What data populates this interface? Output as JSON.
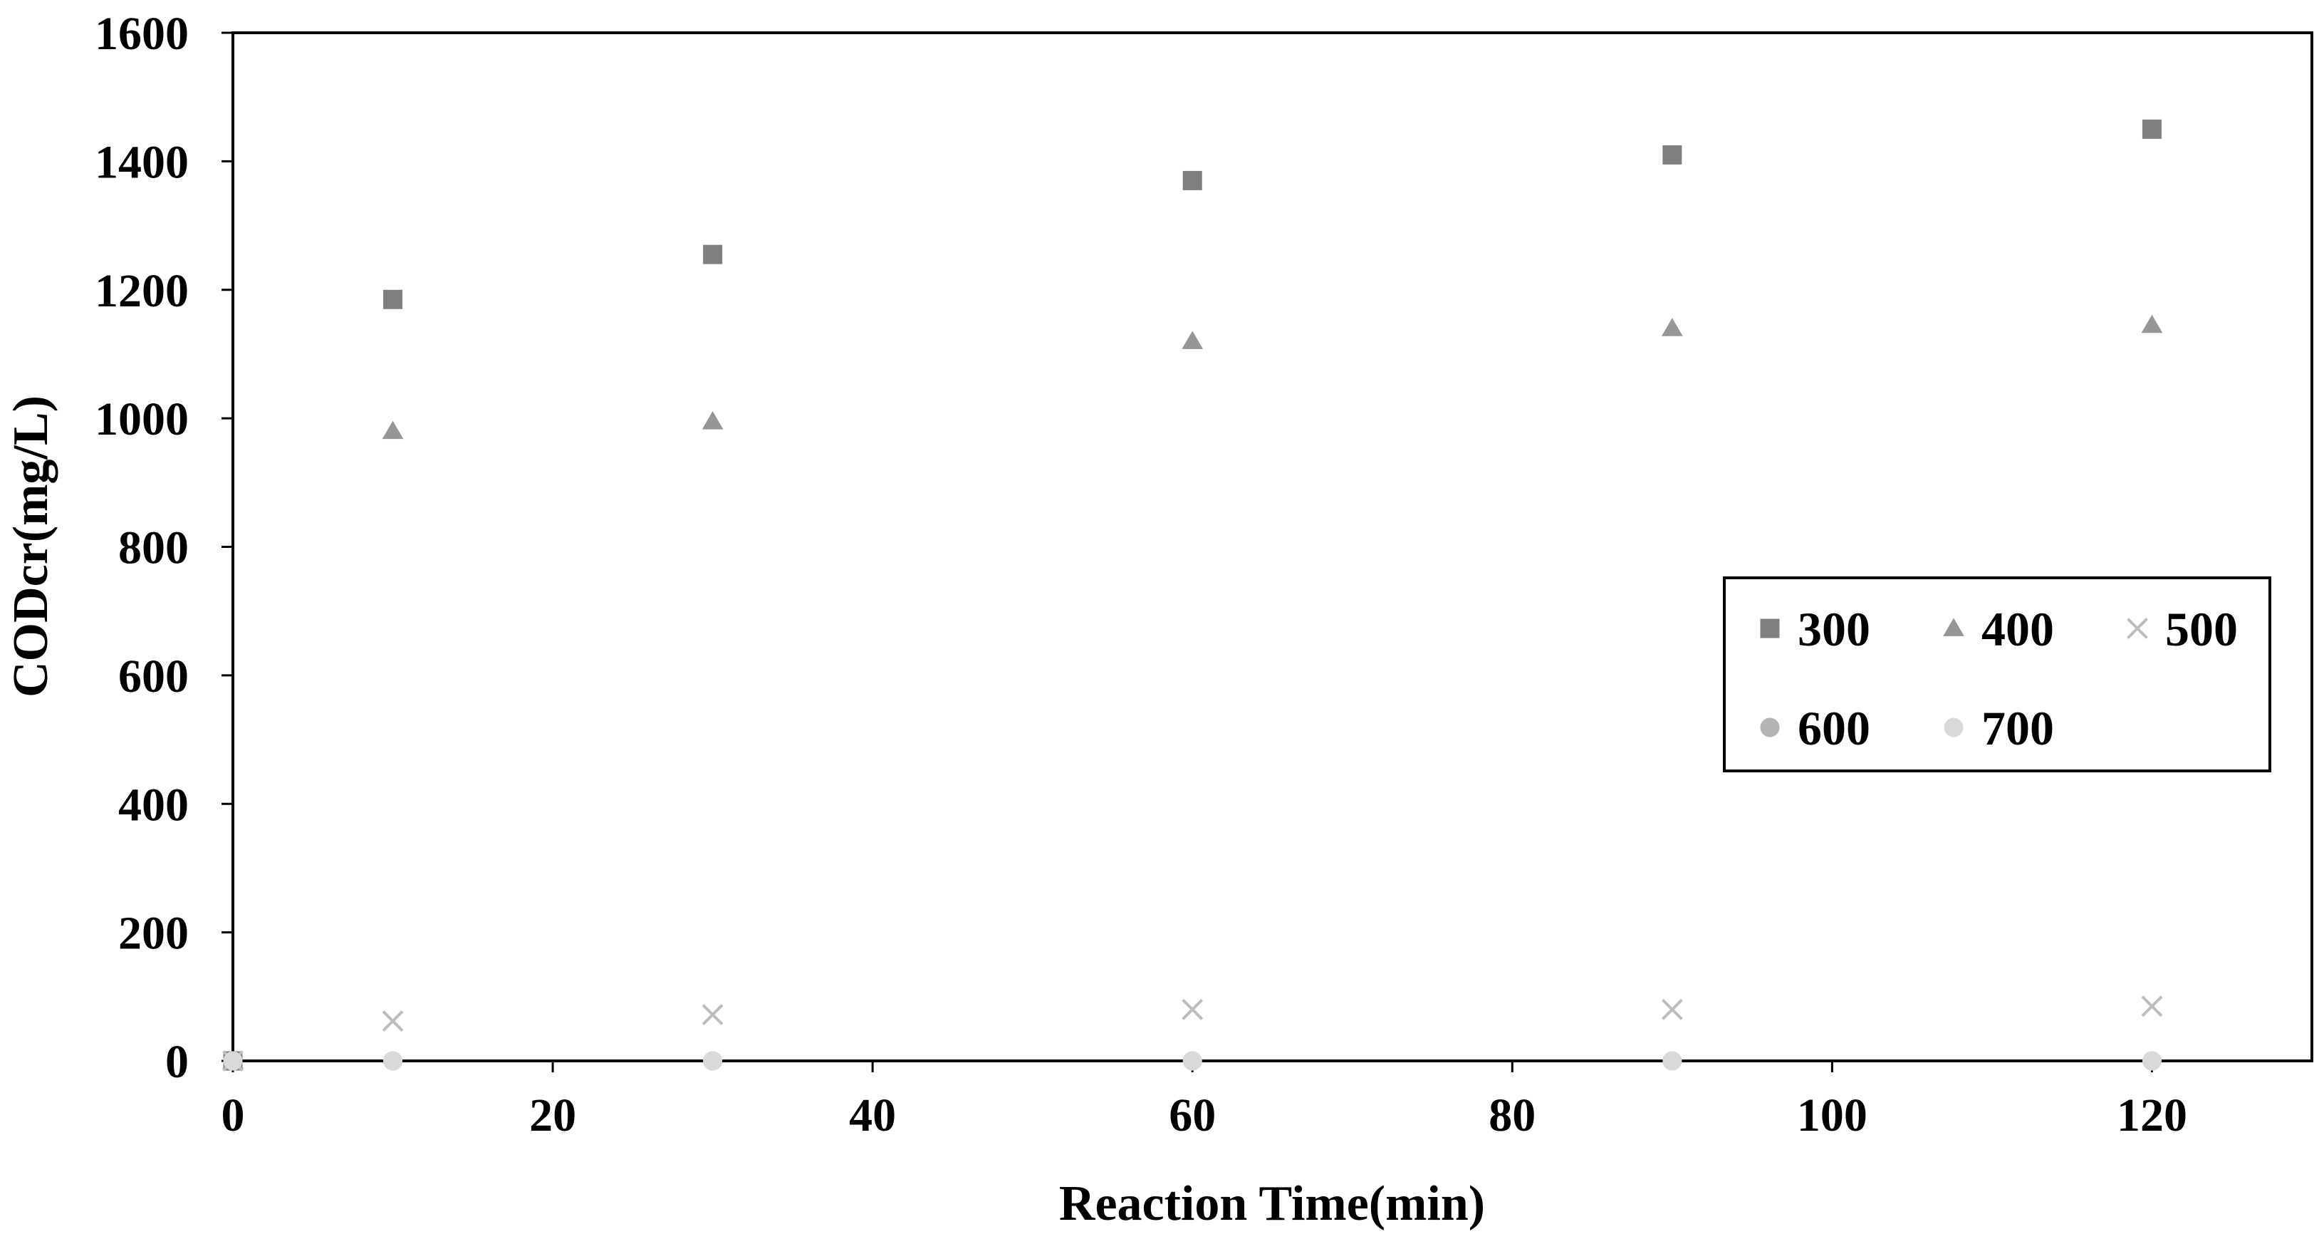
{
  "chart_data": {
    "type": "scatter",
    "title": "",
    "xlabel": "Reaction Time(min)",
    "ylabel": "CODcr(mg/L)",
    "xlim": [
      0,
      130
    ],
    "ylim": [
      0,
      1600
    ],
    "xticks": [
      0,
      20,
      40,
      60,
      80,
      100,
      120
    ],
    "yticks": [
      0,
      200,
      400,
      600,
      800,
      1000,
      1200,
      1400,
      1600
    ],
    "x_tick_labels": [
      "0",
      "20",
      "40",
      "60",
      "80",
      "100",
      "120"
    ],
    "y_tick_labels": [
      "0",
      "200",
      "400",
      "600",
      "800",
      "1000",
      "1200",
      "1400",
      "1600"
    ],
    "grid": false,
    "legend_position": "right",
    "series": [
      {
        "name": "300",
        "marker": "square",
        "color": "#7f7f7f",
        "x": [
          0,
          10,
          30,
          60,
          90,
          120
        ],
        "y": [
          0,
          1185,
          1255,
          1370,
          1410,
          1450
        ]
      },
      {
        "name": "400",
        "marker": "triangle",
        "color": "#969696",
        "x": [
          0,
          10,
          30,
          60,
          90,
          120
        ],
        "y": [
          0,
          980,
          995,
          1120,
          1140,
          1145
        ]
      },
      {
        "name": "500",
        "marker": "cross",
        "color": "#bdbdbd",
        "x": [
          0,
          10,
          30,
          60,
          90,
          120
        ],
        "y": [
          0,
          62,
          72,
          80,
          80,
          85
        ]
      },
      {
        "name": "600",
        "marker": "circle",
        "color": "#b4b4b4",
        "x": [
          0,
          10,
          30,
          60,
          90,
          120
        ],
        "y": [
          0,
          0,
          0,
          0,
          0,
          0
        ]
      },
      {
        "name": "700",
        "marker": "circle",
        "color": "#d9d9d9",
        "x": [
          0,
          10,
          30,
          60,
          90,
          120
        ],
        "y": [
          0,
          0,
          0,
          0,
          0,
          0
        ]
      }
    ]
  }
}
